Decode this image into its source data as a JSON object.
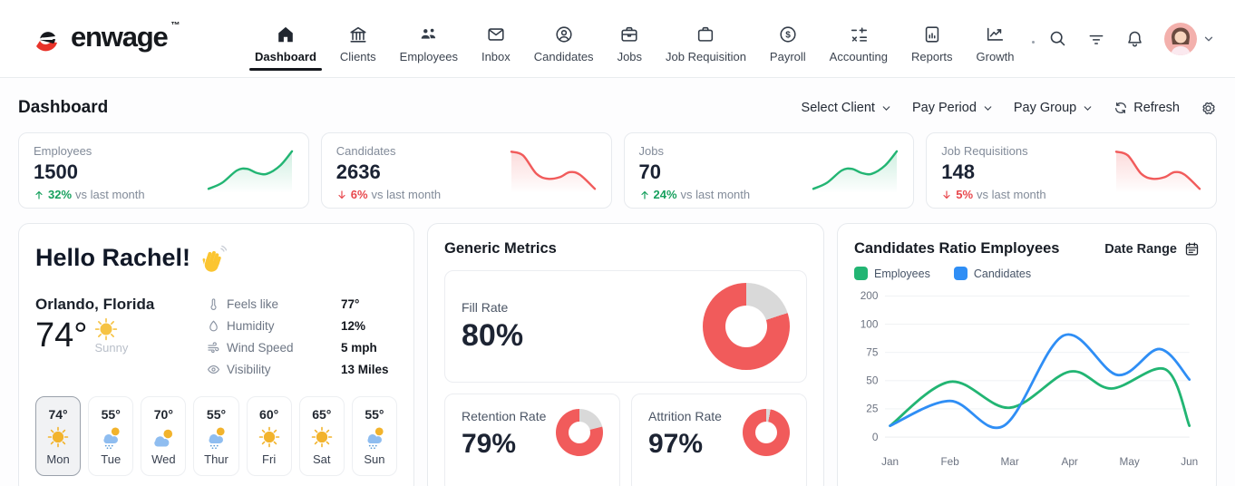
{
  "brand": {
    "name": "enwage",
    "tm": "TM",
    "accent_red": "#e8332a",
    "ink": "#16191d"
  },
  "nav": {
    "items": [
      {
        "label": "Dashboard",
        "icon": "home-icon",
        "active": true
      },
      {
        "label": "Clients",
        "icon": "bank-icon",
        "active": false
      },
      {
        "label": "Employees",
        "icon": "people-group-icon",
        "active": false
      },
      {
        "label": "Inbox",
        "icon": "envelope-icon",
        "active": false
      },
      {
        "label": "Candidates",
        "icon": "user-circle-icon",
        "active": false
      },
      {
        "label": "Jobs",
        "icon": "briefcase-icon",
        "active": false
      },
      {
        "label": "Job Requisition",
        "icon": "briefcase-outline-icon",
        "active": false
      },
      {
        "label": "Payroll",
        "icon": "dollar-circle-icon",
        "active": false
      },
      {
        "label": "Accounting",
        "icon": "math-operations-icon",
        "active": false
      },
      {
        "label": "Reports",
        "icon": "report-document-icon",
        "active": false
      },
      {
        "label": "Growth",
        "icon": "trend-chart-icon",
        "active": false
      }
    ]
  },
  "header_actions": {
    "icons": [
      "search-icon",
      "filter-icon",
      "bell-icon",
      "avatar",
      "chevron-down-icon"
    ]
  },
  "page": {
    "title": "Dashboard",
    "controls": {
      "select_client": "Select Client",
      "pay_period": "Pay Period",
      "pay_group": "Pay Group",
      "refresh": "Refresh"
    }
  },
  "stats": [
    {
      "label": "Employees",
      "value": "1500",
      "change": "32%",
      "direction": "up",
      "suffix": "vs last month"
    },
    {
      "label": "Candidates",
      "value": "2636",
      "change": "6%",
      "direction": "down",
      "suffix": "vs last month"
    },
    {
      "label": "Jobs",
      "value": "70",
      "change": "24%",
      "direction": "up",
      "suffix": "vs last month"
    },
    {
      "label": "Job Requisitions",
      "value": "148",
      "change": "5%",
      "direction": "down",
      "suffix": "vs last month"
    }
  ],
  "greeting": {
    "title": "Hello Rachel!",
    "wave_icon": "waving-hand-icon"
  },
  "weather": {
    "location": "Orlando, Florida",
    "temp": "74°",
    "condition": "Sunny",
    "details": [
      {
        "icon": "thermometer-icon",
        "label": "Feels like",
        "value": "77°"
      },
      {
        "icon": "droplet-icon",
        "label": "Humidity",
        "value": "12%"
      },
      {
        "icon": "wind-icon",
        "label": "Wind Speed",
        "value": "5 mph"
      },
      {
        "icon": "eye-icon",
        "label": "Visibility",
        "value": "13 Miles"
      }
    ],
    "week": [
      {
        "day": "Mon",
        "temp": "74°",
        "icon": "sunny",
        "selected": true
      },
      {
        "day": "Tue",
        "temp": "55°",
        "icon": "rain",
        "selected": false
      },
      {
        "day": "Wed",
        "temp": "70°",
        "icon": "partly-cloudy",
        "selected": false
      },
      {
        "day": "Thur",
        "temp": "55°",
        "icon": "rain",
        "selected": false
      },
      {
        "day": "Fri",
        "temp": "60°",
        "icon": "sunny",
        "selected": false
      },
      {
        "day": "Sat",
        "temp": "65°",
        "icon": "sunny",
        "selected": false
      },
      {
        "day": "Sun",
        "temp": "55°",
        "icon": "rain",
        "selected": false
      }
    ]
  },
  "generic_metrics": {
    "title": "Generic Metrics",
    "donut_color": "#f15b5b",
    "donut_track": "#d9d9d9",
    "metrics": [
      {
        "label": "Fill Rate",
        "value": "80%",
        "percent": 80
      },
      {
        "label": "Retention Rate",
        "value": "79%",
        "percent": 79
      },
      {
        "label": "Attrition Rate",
        "value": "97%",
        "percent": 97
      }
    ]
  },
  "chart_card": {
    "title": "Candidates Ratio Employees",
    "date_range_label": "Date Range"
  },
  "chart_data": {
    "type": "line",
    "title": "Candidates Ratio Employees",
    "x_labels": [
      "Jan",
      "Feb",
      "Mar",
      "Apr",
      "May",
      "Jun"
    ],
    "y_ticks": [
      200,
      100,
      75,
      50,
      25,
      0
    ],
    "grid": true,
    "legend_position": "top-left",
    "series": [
      {
        "name": "Employees",
        "color": "#22b573",
        "points": [
          [
            0,
            10
          ],
          [
            1,
            49
          ],
          [
            2,
            26
          ],
          [
            3,
            58
          ],
          [
            3.7,
            43
          ],
          [
            4.6,
            60
          ],
          [
            5,
            10
          ]
        ]
      },
      {
        "name": "Candidates",
        "color": "#2f8ef5",
        "points": [
          [
            0,
            10
          ],
          [
            1,
            32
          ],
          [
            1.9,
            10
          ],
          [
            2.9,
            90
          ],
          [
            3.8,
            55
          ],
          [
            4.5,
            78
          ],
          [
            5,
            51
          ]
        ]
      }
    ]
  },
  "sparklines": {
    "up_color": "#22b573",
    "down_color": "#f15b5b",
    "up": [
      [
        0,
        6
      ],
      [
        16,
        20
      ],
      [
        34,
        50
      ],
      [
        46,
        54
      ],
      [
        58,
        44
      ],
      [
        70,
        42
      ],
      [
        86,
        62
      ],
      [
        100,
        96
      ]
    ],
    "down": [
      [
        0,
        95
      ],
      [
        14,
        86
      ],
      [
        30,
        42
      ],
      [
        44,
        30
      ],
      [
        58,
        34
      ],
      [
        70,
        46
      ],
      [
        82,
        40
      ],
      [
        100,
        6
      ]
    ]
  }
}
